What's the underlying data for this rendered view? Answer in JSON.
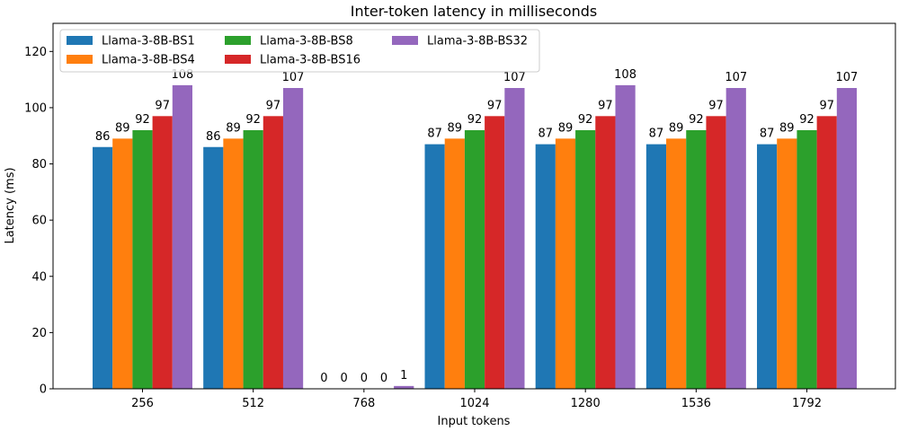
{
  "chart_data": {
    "type": "bar",
    "title": "Inter-token latency in milliseconds",
    "xlabel": "Input tokens",
    "ylabel": "Latency (ms)",
    "categories": [
      "256",
      "512",
      "768",
      "1024",
      "1280",
      "1536",
      "1792"
    ],
    "ylim": [
      0,
      130
    ],
    "yticks": [
      0,
      20,
      40,
      60,
      80,
      100,
      120
    ],
    "grid": false,
    "legend_position": "top-left",
    "series": [
      {
        "name": "Llama-3-8B-BS1",
        "color": "#1f77b4",
        "values": [
          86,
          86,
          0,
          87,
          87,
          87,
          87
        ]
      },
      {
        "name": "Llama-3-8B-BS4",
        "color": "#ff7f0e",
        "values": [
          89,
          89,
          0,
          89,
          89,
          89,
          89
        ]
      },
      {
        "name": "Llama-3-8B-BS8",
        "color": "#2ca02c",
        "values": [
          92,
          92,
          0,
          92,
          92,
          92,
          92
        ]
      },
      {
        "name": "Llama-3-8B-BS16",
        "color": "#d62728",
        "values": [
          97,
          97,
          0,
          97,
          97,
          97,
          97
        ]
      },
      {
        "name": "Llama-3-8B-BS32",
        "color": "#9467bd",
        "values": [
          108,
          107,
          1,
          107,
          108,
          107,
          107
        ]
      }
    ]
  }
}
